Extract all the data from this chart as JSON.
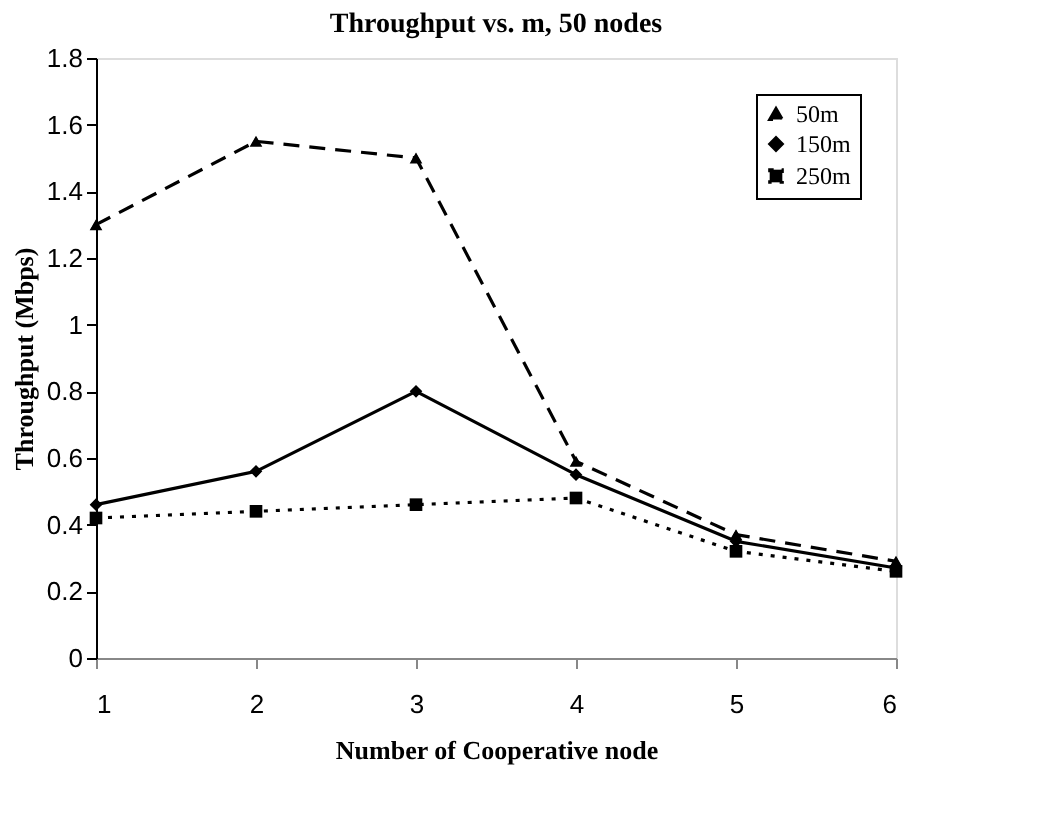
{
  "chart_data": {
    "type": "line",
    "title": "Throughput vs. m, 50 nodes",
    "xlabel": "Number of Cooperative node",
    "ylabel": "Throughput (Mbps)",
    "x": [
      1,
      2,
      3,
      4,
      5,
      6
    ],
    "xlim": [
      1,
      6
    ],
    "xticks": [
      1,
      2,
      3,
      4,
      5,
      6
    ],
    "ylim": [
      0,
      1.8
    ],
    "yticks": [
      0,
      0.2,
      0.4,
      0.6,
      0.8,
      1,
      1.2,
      1.4,
      1.6,
      1.8
    ],
    "grid": false,
    "legend": "top right",
    "series": [
      {
        "name": "50m",
        "color": "#000000",
        "marker": "triangle",
        "line_style": "dashed",
        "values": [
          1.3,
          1.55,
          1.5,
          0.59,
          0.37,
          0.29
        ]
      },
      {
        "name": "150m",
        "color": "#000000",
        "marker": "diamond",
        "line_style": "solid",
        "values": [
          0.46,
          0.56,
          0.8,
          0.55,
          0.35,
          0.27
        ]
      },
      {
        "name": "250m",
        "color": "#000000",
        "marker": "square",
        "line_style": "dotted",
        "values": [
          0.42,
          0.44,
          0.46,
          0.48,
          0.32,
          0.26
        ]
      }
    ]
  }
}
